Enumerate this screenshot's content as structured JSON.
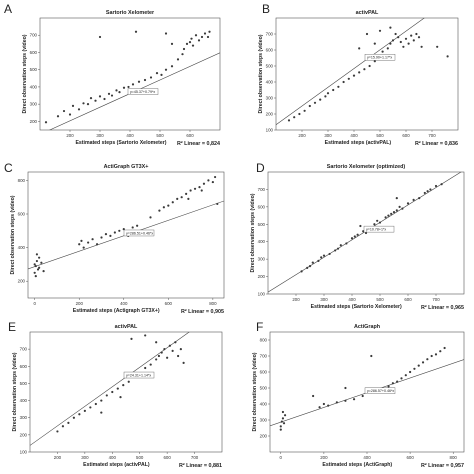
{
  "chart_data": [
    {
      "type": "scatter",
      "letter": "A",
      "title": "Sartorio Xelometer",
      "xlabel": "Estimated steps (Sartorio Xelometer)",
      "ylabel": "Direct observation steps (video)",
      "r2_text": "R² Linear = 0,824",
      "equation": "y=45.37+0.79*x",
      "xlim": [
        100,
        700
      ],
      "ylim": [
        150,
        800
      ],
      "xticks": [
        200,
        300,
        400,
        500,
        600
      ],
      "yticks": [
        200,
        300,
        400,
        500,
        600,
        700
      ],
      "fit": {
        "intercept": 45.37,
        "slope": 0.79
      },
      "points": [
        [
          120,
          195
        ],
        [
          160,
          230
        ],
        [
          180,
          260
        ],
        [
          200,
          240
        ],
        [
          210,
          290
        ],
        [
          230,
          270
        ],
        [
          245,
          305
        ],
        [
          260,
          300
        ],
        [
          270,
          335
        ],
        [
          285,
          320
        ],
        [
          300,
          345
        ],
        [
          315,
          330
        ],
        [
          330,
          360
        ],
        [
          340,
          350
        ],
        [
          355,
          380
        ],
        [
          365,
          370
        ],
        [
          380,
          395
        ],
        [
          395,
          400
        ],
        [
          410,
          415
        ],
        [
          430,
          430
        ],
        [
          450,
          440
        ],
        [
          470,
          455
        ],
        [
          490,
          480
        ],
        [
          505,
          470
        ],
        [
          520,
          500
        ],
        [
          540,
          520
        ],
        [
          560,
          560
        ],
        [
          575,
          590
        ],
        [
          580,
          620
        ],
        [
          590,
          650
        ],
        [
          600,
          660
        ],
        [
          605,
          680
        ],
        [
          610,
          640
        ],
        [
          620,
          700
        ],
        [
          630,
          670
        ],
        [
          640,
          690
        ],
        [
          650,
          710
        ],
        [
          660,
          690
        ],
        [
          665,
          720
        ],
        [
          520,
          710
        ],
        [
          420,
          720
        ],
        [
          300,
          690
        ],
        [
          540,
          650
        ]
      ]
    },
    {
      "type": "scatter",
      "letter": "B",
      "title": "activPAL",
      "xlabel": "Estimated steps (activPAL)",
      "ylabel": "Direct observation steps (video)",
      "r2_text": "R² Linear = 0,836",
      "equation": "y=15.90+1.17*x",
      "xlim": [
        100,
        800
      ],
      "ylim": [
        100,
        800
      ],
      "xticks": [
        200,
        300,
        400,
        500,
        600,
        700
      ],
      "yticks": [
        100,
        200,
        300,
        400,
        500,
        600,
        700
      ],
      "fit": {
        "intercept": 15.9,
        "slope": 1.17
      },
      "points": [
        [
          150,
          160
        ],
        [
          170,
          180
        ],
        [
          190,
          200
        ],
        [
          210,
          220
        ],
        [
          230,
          250
        ],
        [
          250,
          270
        ],
        [
          270,
          290
        ],
        [
          290,
          310
        ],
        [
          300,
          330
        ],
        [
          320,
          350
        ],
        [
          340,
          370
        ],
        [
          360,
          400
        ],
        [
          380,
          420
        ],
        [
          400,
          440
        ],
        [
          420,
          460
        ],
        [
          440,
          480
        ],
        [
          460,
          500
        ],
        [
          480,
          530
        ],
        [
          500,
          560
        ],
        [
          510,
          590
        ],
        [
          530,
          610
        ],
        [
          540,
          640
        ],
        [
          550,
          660
        ],
        [
          560,
          700
        ],
        [
          570,
          680
        ],
        [
          580,
          650
        ],
        [
          590,
          620
        ],
        [
          600,
          670
        ],
        [
          610,
          640
        ],
        [
          620,
          690
        ],
        [
          630,
          660
        ],
        [
          640,
          700
        ],
        [
          650,
          680
        ],
        [
          660,
          620
        ],
        [
          450,
          700
        ],
        [
          500,
          720
        ],
        [
          540,
          740
        ],
        [
          420,
          610
        ],
        [
          480,
          640
        ],
        [
          720,
          620
        ],
        [
          760,
          560
        ]
      ]
    },
    {
      "type": "scatter",
      "letter": "C",
      "title": "ActiGraph GT3X+",
      "xlabel": "Estimated steps (Actigraph GT3X+)",
      "ylabel": "Direct observation steps (video)",
      "r2_text": "R² Linear = 0,905",
      "equation": "y=286.51+0.46*x",
      "xlim": [
        -30,
        850
      ],
      "ylim": [
        100,
        850
      ],
      "xticks": [
        0,
        200,
        400,
        600,
        800
      ],
      "yticks": [
        200,
        400,
        600,
        800
      ],
      "fit": {
        "intercept": 286.51,
        "slope": 0.46
      },
      "points": [
        [
          0,
          250
        ],
        [
          5,
          290
        ],
        [
          10,
          320
        ],
        [
          15,
          270
        ],
        [
          20,
          340
        ],
        [
          10,
          360
        ],
        [
          0,
          300
        ],
        [
          5,
          230
        ],
        [
          20,
          280
        ],
        [
          30,
          310
        ],
        [
          40,
          260
        ],
        [
          200,
          420
        ],
        [
          210,
          440
        ],
        [
          220,
          400
        ],
        [
          240,
          430
        ],
        [
          260,
          450
        ],
        [
          280,
          420
        ],
        [
          300,
          460
        ],
        [
          320,
          480
        ],
        [
          340,
          470
        ],
        [
          360,
          490
        ],
        [
          380,
          500
        ],
        [
          400,
          510
        ],
        [
          420,
          470
        ],
        [
          440,
          520
        ],
        [
          460,
          530
        ],
        [
          480,
          500
        ],
        [
          520,
          580
        ],
        [
          560,
          620
        ],
        [
          580,
          640
        ],
        [
          600,
          650
        ],
        [
          620,
          670
        ],
        [
          640,
          690
        ],
        [
          660,
          700
        ],
        [
          680,
          720
        ],
        [
          700,
          740
        ],
        [
          720,
          750
        ],
        [
          740,
          760
        ],
        [
          760,
          780
        ],
        [
          780,
          800
        ],
        [
          800,
          790
        ],
        [
          810,
          820
        ],
        [
          820,
          660
        ],
        [
          750,
          740
        ],
        [
          690,
          690
        ]
      ]
    },
    {
      "type": "scatter",
      "letter": "D",
      "title": "Sartorio Xelometer (optimized)",
      "xlabel": "Estimated steps (Sartorio Xelometer)",
      "ylabel": "Direct observation steps (video)",
      "r2_text": "R² Linear = 0,965",
      "equation": "y=10.78+1*x",
      "xlim": [
        100,
        800
      ],
      "ylim": [
        100,
        800
      ],
      "xticks": [
        200,
        300,
        400,
        500,
        600,
        700
      ],
      "yticks": [
        100,
        200,
        300,
        400,
        500,
        600,
        700
      ],
      "fit": {
        "intercept": 10.78,
        "slope": 1.0
      },
      "points": [
        [
          220,
          230
        ],
        [
          240,
          250
        ],
        [
          250,
          260
        ],
        [
          260,
          280
        ],
        [
          280,
          290
        ],
        [
          290,
          310
        ],
        [
          300,
          320
        ],
        [
          320,
          330
        ],
        [
          340,
          350
        ],
        [
          350,
          360
        ],
        [
          360,
          380
        ],
        [
          380,
          390
        ],
        [
          400,
          420
        ],
        [
          410,
          430
        ],
        [
          420,
          440
        ],
        [
          440,
          460
        ],
        [
          450,
          450
        ],
        [
          460,
          480
        ],
        [
          480,
          500
        ],
        [
          490,
          520
        ],
        [
          500,
          510
        ],
        [
          520,
          540
        ],
        [
          530,
          550
        ],
        [
          540,
          560
        ],
        [
          550,
          570
        ],
        [
          560,
          580
        ],
        [
          570,
          600
        ],
        [
          580,
          590
        ],
        [
          600,
          620
        ],
        [
          620,
          640
        ],
        [
          640,
          650
        ],
        [
          660,
          680
        ],
        [
          670,
          690
        ],
        [
          680,
          700
        ],
        [
          700,
          720
        ],
        [
          720,
          730
        ],
        [
          560,
          650
        ],
        [
          430,
          490
        ]
      ]
    },
    {
      "type": "scatter",
      "letter": "E",
      "title": "activPAL",
      "xlabel": "Estimated steps (activPAL)",
      "ylabel": "Direct observation steps (video)",
      "r2_text": "R² Linear = 0,881",
      "equation": "y=24.31+1.14*x",
      "xlim": [
        100,
        800
      ],
      "ylim": [
        100,
        800
      ],
      "xticks": [
        200,
        300,
        400,
        500,
        600,
        700
      ],
      "yticks": [
        100,
        200,
        300,
        400,
        500,
        600,
        700
      ],
      "fit": {
        "intercept": 24.31,
        "slope": 1.14
      },
      "points": [
        [
          200,
          220
        ],
        [
          220,
          250
        ],
        [
          240,
          270
        ],
        [
          260,
          300
        ],
        [
          280,
          320
        ],
        [
          300,
          340
        ],
        [
          320,
          360
        ],
        [
          340,
          380
        ],
        [
          360,
          400
        ],
        [
          380,
          430
        ],
        [
          400,
          450
        ],
        [
          420,
          470
        ],
        [
          440,
          490
        ],
        [
          460,
          510
        ],
        [
          480,
          540
        ],
        [
          500,
          560
        ],
        [
          520,
          590
        ],
        [
          540,
          610
        ],
        [
          560,
          640
        ],
        [
          570,
          660
        ],
        [
          580,
          680
        ],
        [
          590,
          700
        ],
        [
          600,
          650
        ],
        [
          610,
          720
        ],
        [
          620,
          690
        ],
        [
          630,
          740
        ],
        [
          640,
          660
        ],
        [
          650,
          700
        ],
        [
          660,
          620
        ],
        [
          470,
          760
        ],
        [
          520,
          780
        ],
        [
          560,
          740
        ],
        [
          430,
          420
        ],
        [
          360,
          330
        ]
      ]
    },
    {
      "type": "scatter",
      "letter": "F",
      "title": "ActiGraph",
      "xlabel": "Estimated steps (ActiGraph)",
      "ylabel": "Direct observation steps (video)",
      "r2_text": "R² Linear = 0,957",
      "equation": "y=286.57+0.46*x",
      "xlim": [
        -50,
        850
      ],
      "ylim": [
        100,
        850
      ],
      "xticks": [
        0,
        200,
        400,
        600,
        800
      ],
      "yticks": [
        200,
        300,
        400,
        500,
        600,
        700,
        800
      ],
      "fit": {
        "intercept": 286.57,
        "slope": 0.46
      },
      "points": [
        [
          0,
          260
        ],
        [
          5,
          290
        ],
        [
          10,
          310
        ],
        [
          15,
          280
        ],
        [
          20,
          330
        ],
        [
          0,
          240
        ],
        [
          10,
          350
        ],
        [
          180,
          380
        ],
        [
          200,
          400
        ],
        [
          220,
          390
        ],
        [
          260,
          410
        ],
        [
          300,
          420
        ],
        [
          340,
          430
        ],
        [
          380,
          450
        ],
        [
          420,
          470
        ],
        [
          460,
          490
        ],
        [
          500,
          510
        ],
        [
          520,
          530
        ],
        [
          540,
          540
        ],
        [
          560,
          560
        ],
        [
          580,
          580
        ],
        [
          600,
          600
        ],
        [
          620,
          620
        ],
        [
          640,
          640
        ],
        [
          660,
          660
        ],
        [
          680,
          680
        ],
        [
          700,
          700
        ],
        [
          720,
          710
        ],
        [
          740,
          730
        ],
        [
          760,
          750
        ],
        [
          420,
          700
        ],
        [
          300,
          500
        ],
        [
          150,
          450
        ]
      ]
    }
  ]
}
